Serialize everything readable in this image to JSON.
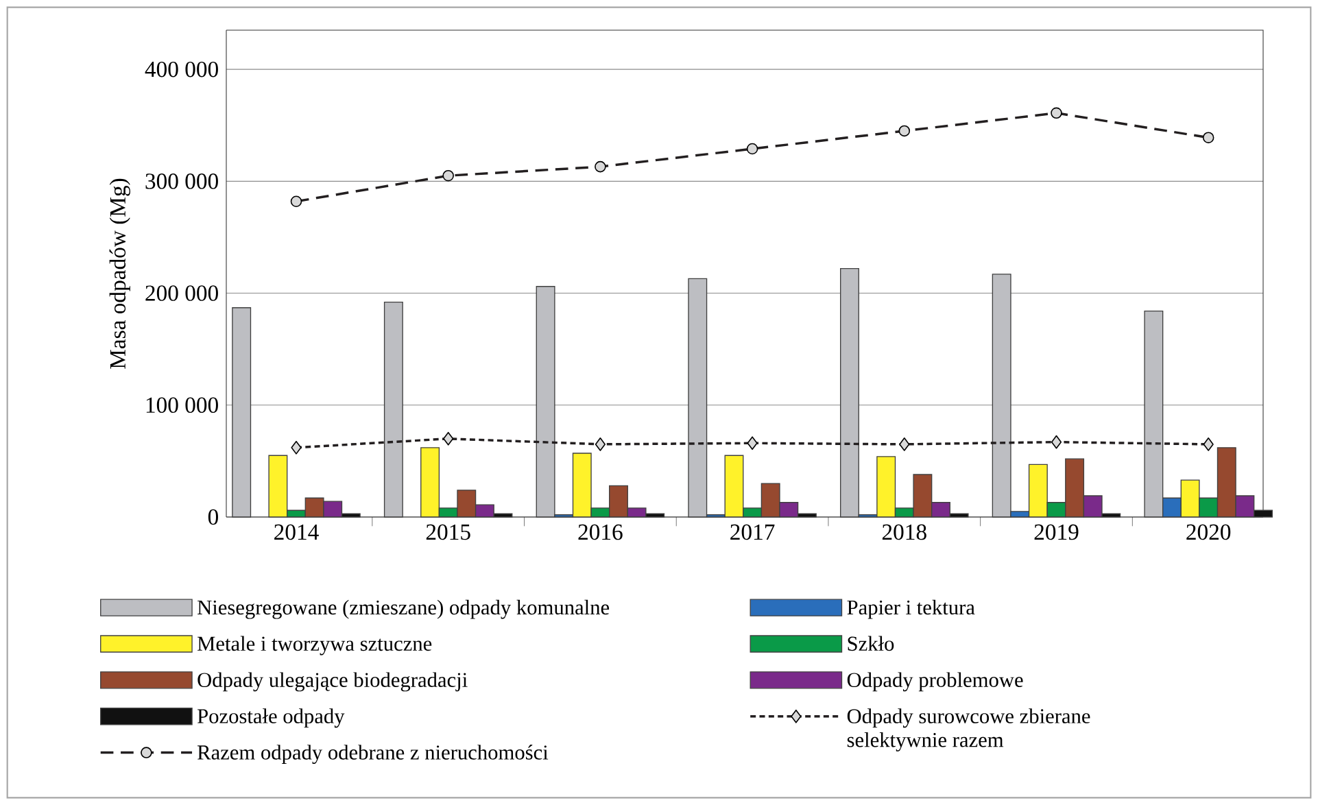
{
  "chart_data": {
    "type": "bar",
    "ylabel": "Masa odpadów (Mg)",
    "categories": [
      "2014",
      "2015",
      "2016",
      "2017",
      "2018",
      "2019",
      "2020"
    ],
    "series": [
      {
        "name": "Niesegregowane (zmieszane) odpady komunalne",
        "color": "#bdbec2",
        "values": [
          187000,
          192000,
          206000,
          213000,
          222000,
          217000,
          184000
        ]
      },
      {
        "name": "Papier i tektura",
        "color": "#2a6ebb",
        "values": [
          null,
          null,
          2000,
          2000,
          2000,
          5000,
          17000
        ]
      },
      {
        "name": "Metale i tworzywa sztuczne",
        "color": "#fff22a",
        "values": [
          55000,
          62000,
          57000,
          55000,
          54000,
          47000,
          33000
        ]
      },
      {
        "name": "Szkło",
        "color": "#0a9a48",
        "values": [
          6000,
          8000,
          8000,
          8000,
          8000,
          13000,
          17000
        ]
      },
      {
        "name": "Odpady ulegające biodegradacji",
        "color": "#96492f",
        "values": [
          17000,
          24000,
          28000,
          30000,
          38000,
          52000,
          62000
        ]
      },
      {
        "name": "Odpady problemowe",
        "color": "#7a2a8a",
        "values": [
          14000,
          11000,
          8000,
          13000,
          13000,
          19000,
          19000
        ]
      },
      {
        "name": "Pozostałe odpady",
        "color": "#111111",
        "values": [
          3000,
          3000,
          3000,
          3000,
          3000,
          3000,
          6000
        ]
      },
      {
        "name": "Odpady surowcowe zbierane selektywnie razem",
        "type": "line",
        "marker": "diamond",
        "line_style": "dotted",
        "color": "#231f20",
        "values": [
          62000,
          70000,
          65000,
          66000,
          65000,
          67000,
          65000
        ]
      },
      {
        "name": "Razem odpady odebrane z nieruchomości",
        "type": "line",
        "marker": "circle",
        "line_style": "dashed",
        "color": "#231f20",
        "values": [
          282000,
          305000,
          313000,
          329000,
          345000,
          361000,
          339000
        ]
      }
    ],
    "ylim": [
      0,
      435000
    ],
    "yticks": [
      0,
      {
        "value": 100000,
        "label": "100 000"
      },
      {
        "value": 200000,
        "label": "200 000"
      },
      {
        "value": 300000,
        "label": "300 000"
      },
      {
        "value": 400000,
        "label": "400 000"
      }
    ],
    "grid": "y",
    "legend": "bottom"
  }
}
